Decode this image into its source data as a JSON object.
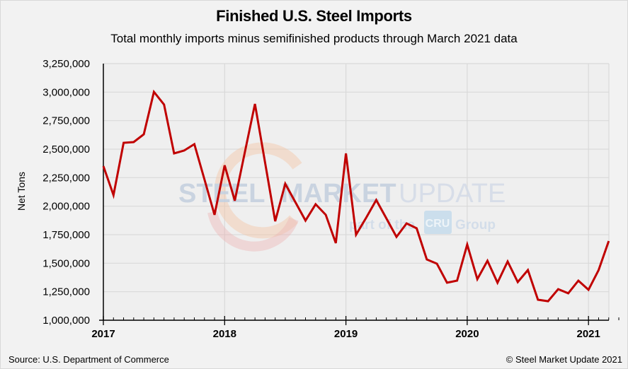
{
  "chart_data": {
    "type": "line",
    "title": "Finished U.S. Steel Imports",
    "subtitle": "Total monthly imports minus semifinished products through March 2021 data",
    "xlabel": "",
    "ylabel": "Net Tons",
    "ylim": [
      1000000,
      3250000
    ],
    "yticks": [
      1000000,
      1250000,
      1500000,
      1750000,
      2000000,
      2250000,
      2500000,
      2750000,
      3000000,
      3250000
    ],
    "ytick_labels": [
      "1,000,000",
      "1,250,000",
      "1,500,000",
      "1,750,000",
      "2,000,000",
      "2,250,000",
      "2,500,000",
      "2,750,000",
      "3,000,000",
      "3,250,000"
    ],
    "xtick_labels": [
      "2017",
      "2018",
      "2019",
      "2020",
      "2021"
    ],
    "x_start": "2017-01",
    "x_end": "2021-03",
    "grid": true,
    "legend": "none",
    "series": [
      {
        "name": "Finished Steel Imports",
        "color": "#c00000",
        "x": [
          "2017-01",
          "2017-02",
          "2017-03",
          "2017-04",
          "2017-05",
          "2017-06",
          "2017-07",
          "2017-08",
          "2017-09",
          "2017-10",
          "2017-11",
          "2017-12",
          "2018-01",
          "2018-02",
          "2018-03",
          "2018-04",
          "2018-05",
          "2018-06",
          "2018-07",
          "2018-08",
          "2018-09",
          "2018-10",
          "2018-11",
          "2018-12",
          "2019-01",
          "2019-02",
          "2019-03",
          "2019-04",
          "2019-05",
          "2019-06",
          "2019-07",
          "2019-08",
          "2019-09",
          "2019-10",
          "2019-11",
          "2019-12",
          "2020-01",
          "2020-02",
          "2020-03",
          "2020-04",
          "2020-05",
          "2020-06",
          "2020-07",
          "2020-08",
          "2020-09",
          "2020-10",
          "2020-11",
          "2020-12",
          "2021-01",
          "2021-02",
          "2021-03"
        ],
        "values": [
          2351000,
          2097000,
          2556000,
          2562000,
          2630000,
          3002000,
          2891000,
          2463000,
          2488000,
          2544000,
          2234000,
          1924000,
          2358000,
          2048000,
          2475000,
          2897000,
          2382000,
          1868000,
          2196000,
          2035000,
          1874000,
          2017000,
          1924000,
          1676000,
          2463000,
          1750000,
          1899000,
          2054000,
          1893000,
          1731000,
          1849000,
          1806000,
          1533000,
          1496000,
          1329000,
          1347000,
          1663000,
          1360000,
          1521000,
          1329000,
          1515000,
          1335000,
          1440000,
          1180000,
          1167000,
          1273000,
          1236000,
          1347000,
          1267000,
          1440000,
          1694000
        ]
      }
    ]
  },
  "watermark": {
    "brand_bold": "STEEL",
    "brand_bold2": "MARKET",
    "brand_light": "UPDATE",
    "tagline_prefix": "part of the",
    "tagline_badge": "CRU",
    "tagline_suffix": "Group"
  },
  "footer": {
    "source": "Source: U.S. Department of Commerce",
    "copyright": "© Steel Market Update 2021"
  },
  "colors": {
    "line": "#c00000",
    "background": "#f2f2f2",
    "plot_background": "#efefef",
    "grid": "#d9d9d9"
  }
}
